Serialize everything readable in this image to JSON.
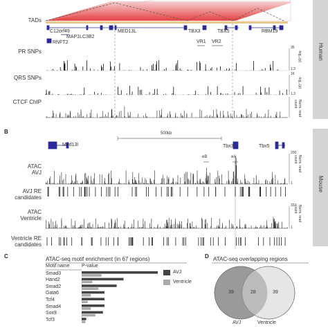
{
  "panel_a": {
    "tracks": {
      "tads": "TADs",
      "pr_snps": "PR SNPs",
      "qrs_snps": "QRS SNPs",
      "ctcf": "CTCF ChIP"
    },
    "genes": [
      "C12orf49",
      "MED13L",
      "TBX3",
      "TBX5",
      "RBM19",
      "MAP1LC3B2",
      "RNFT2"
    ],
    "regions": [
      "VR1",
      "VR2"
    ],
    "pr_axis": {
      "max": "35",
      "min": "1.3",
      "label": "-log₁₀(p)"
    },
    "qrs_axis": {
      "max": "16",
      "min": "1.3",
      "label": "-log₁₀(p)"
    },
    "ctcf_axis_label": "Norm. read count",
    "species": "Human"
  },
  "panel_b": {
    "letter": "B",
    "scale": "500kb",
    "genes": [
      "Med13l",
      "Tbx3",
      "Tbx5"
    ],
    "peaks": [
      "eB",
      "eA"
    ],
    "tracks": {
      "atac_avj": "ATAC\nAVJ",
      "avj_re": "AVJ RE\ncandidates",
      "atac_vent": "ATAC\nVentricle",
      "vent_re": "Ventricle RE\ncandidates"
    },
    "axis1": {
      "max": "200",
      "min": "1"
    },
    "axis2": {
      "max": "337",
      "min": "1"
    },
    "axis_label": "Norm. read count",
    "species": "Mouse"
  },
  "panel_c": {
    "letter": "C",
    "title": "ATAC-seq motif enrichment (in 67 regions)",
    "col_motif": "Motif name",
    "col_p": "P-value",
    "legend": [
      {
        "name": "AVJ",
        "color": "#444444"
      },
      {
        "name": "Ventricle",
        "color": "#aaaaaa"
      }
    ]
  },
  "panel_d": {
    "letter": "D",
    "title": "ATAC-seq overlapping regions",
    "left": "39",
    "overlap": "28",
    "right": "39",
    "label_left": "AVJ",
    "label_right": "Ventricle"
  },
  "chart_data": {
    "type": "bar",
    "categories": [
      "Smad3",
      "Hand2",
      "Smad2",
      "Gata6",
      "Tcf4",
      "Smad4",
      "Sox9",
      "Tcf3"
    ],
    "series": [
      {
        "name": "AVJ",
        "values": [
          1.0,
          0.55,
          0.46,
          0.3,
          0.3,
          0.3,
          0.28,
          0.06
        ]
      },
      {
        "name": "Ventricle",
        "values": [
          0.26,
          0.14,
          0.22,
          0.12,
          0.08,
          0.12,
          0.18,
          0.05
        ]
      }
    ]
  }
}
